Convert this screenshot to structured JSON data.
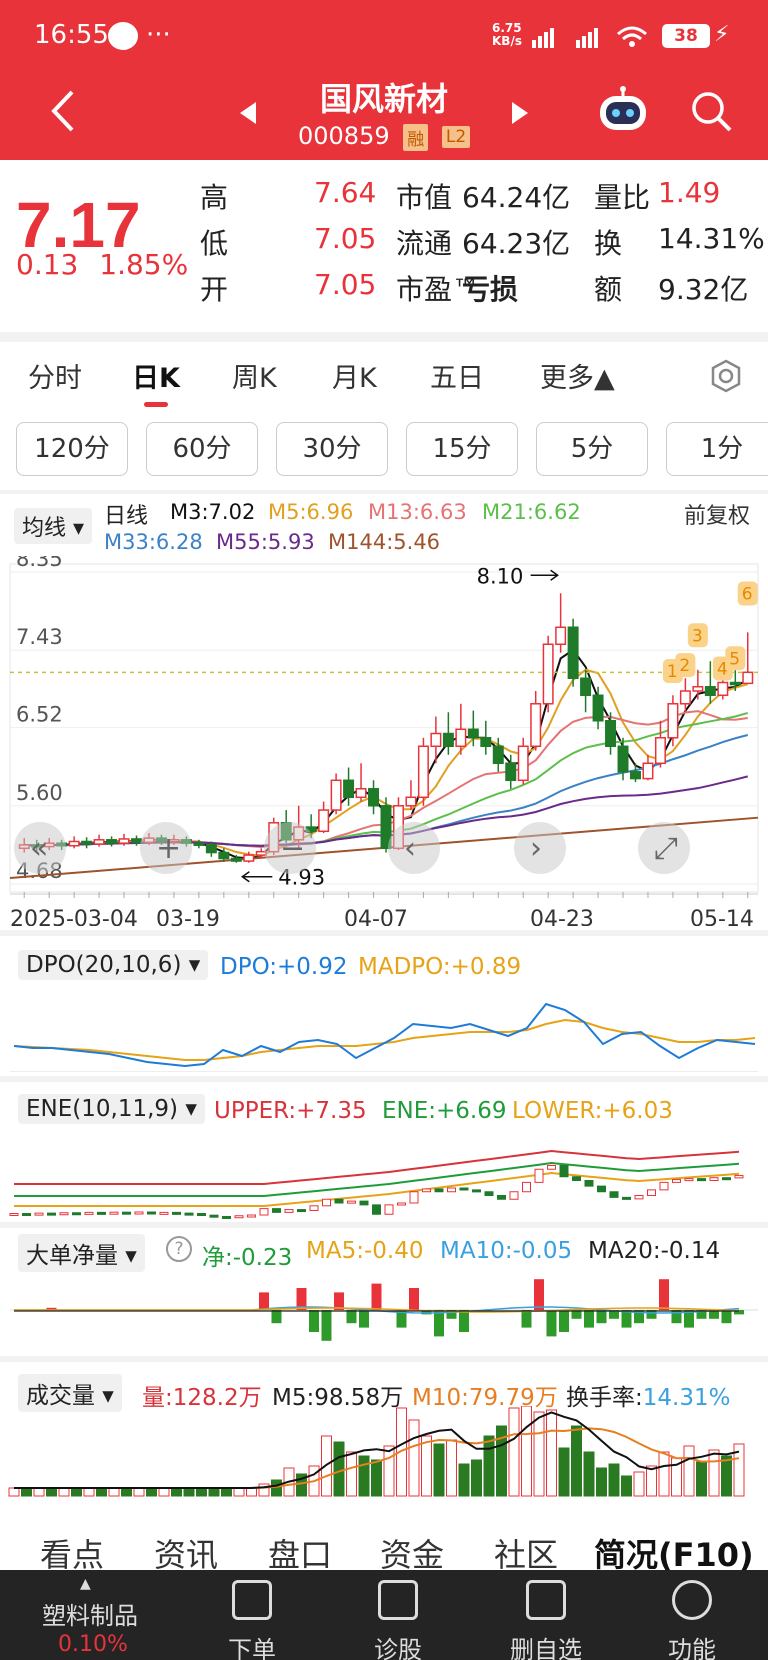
{
  "status_bar": {
    "time": "16:55",
    "dots": "···",
    "net_speed_top": "6.75",
    "net_speed_unit": "KB/s",
    "battery": "38"
  },
  "header": {
    "title": "国风新材",
    "code": "000859",
    "tag_margin": "融",
    "tag_level": "L2"
  },
  "quote": {
    "price": "7.17",
    "change": "0.13",
    "change_pct": "1.85%",
    "rows": [
      {
        "l1": "高",
        "v1": "7.64",
        "l2": "市值",
        "v2": "64.24亿",
        "l3": "量比",
        "v3": "1.49"
      },
      {
        "l1": "低",
        "v1": "7.05",
        "l2": "流通",
        "v2": "64.23亿",
        "l3": "换",
        "v3": "14.31%"
      },
      {
        "l1": "开",
        "v1": "7.05",
        "l2": "市盈™",
        "v2": "亏损",
        "l3": "额",
        "v3": "9.32亿"
      }
    ]
  },
  "period_tabs": [
    "分时",
    "日K",
    "周K",
    "月K",
    "五日",
    "更多▲"
  ],
  "minute_tabs": [
    "120分",
    "60分",
    "30分",
    "15分",
    "5分",
    "1分"
  ],
  "ma": {
    "selector": "均线",
    "label": "日线",
    "adjust": "前复权",
    "m3": "M3:7.02",
    "m5": "M5:6.96",
    "m13": "M13:6.63",
    "m21": "M21:6.62",
    "m33": "M33:6.28",
    "m55": "M55:5.93",
    "m144": "M144:5.46"
  },
  "kchart": {
    "y_ticks": [
      "8.35",
      "7.43",
      "6.52",
      "5.60",
      "4.68"
    ],
    "x_ticks": [
      "2025-03-04",
      "03-19",
      "04-07",
      "04-23",
      "05-14"
    ],
    "high_label": "8.10",
    "low_label": "4.93",
    "markers": [
      "1",
      "2",
      "3",
      "4",
      "5",
      "6"
    ]
  },
  "dpo": {
    "selector": "DPO(20,10,6)",
    "dpo": "DPO:+0.92",
    "madpo": "MADPO:+0.89"
  },
  "ene": {
    "selector": "ENE(10,11,9)",
    "upper": "UPPER:+7.35",
    "ene": "ENE:+6.69",
    "lower": "LOWER:+6.03"
  },
  "bigorder": {
    "selector": "大单净量",
    "help": "?",
    "net": "净:-0.23",
    "ma5": "MA5:-0.40",
    "ma10": "MA10:-0.05",
    "ma20": "MA20:-0.14"
  },
  "volume": {
    "selector": "成交量",
    "vol": "量:128.2万",
    "m5": "M5:98.58万",
    "m10": "M10:79.79万",
    "turnover_label": "换手率:",
    "turnover": "14.31%"
  },
  "bottom_tabs": [
    "看点",
    "资讯",
    "盘口",
    "资金",
    "社区",
    "简况(F10)"
  ],
  "footer": {
    "sector": "塑料制品",
    "sector_pct": "0.10%",
    "items": [
      "下单",
      "诊股",
      "删自选",
      "功能"
    ]
  },
  "chart_data": {
    "type": "candlestick",
    "title": "",
    "x_ticks": [
      "2025-03-04",
      "03-19",
      "04-07",
      "04-23",
      "05-14"
    ],
    "ylim": [
      4.68,
      8.35
    ],
    "y_ticks": [
      8.35,
      7.43,
      6.52,
      5.6,
      4.68
    ],
    "annotations": {
      "high": 8.1,
      "low": 4.93
    },
    "candles": [
      [
        5.1,
        5.14,
        5.22,
        5.05
      ],
      [
        5.14,
        5.12,
        5.2,
        5.06
      ],
      [
        5.12,
        5.16,
        5.22,
        5.08
      ],
      [
        5.16,
        5.13,
        5.2,
        5.08
      ],
      [
        5.13,
        5.18,
        5.24,
        5.1
      ],
      [
        5.18,
        5.15,
        5.23,
        5.1
      ],
      [
        5.15,
        5.2,
        5.26,
        5.12
      ],
      [
        5.2,
        5.16,
        5.24,
        5.12
      ],
      [
        5.16,
        5.21,
        5.27,
        5.13
      ],
      [
        5.21,
        5.17,
        5.25,
        5.13
      ],
      [
        5.17,
        5.22,
        5.28,
        5.14
      ],
      [
        5.22,
        5.18,
        5.26,
        5.14
      ],
      [
        5.18,
        5.2,
        5.26,
        5.14
      ],
      [
        5.2,
        5.16,
        5.24,
        5.12
      ],
      [
        5.16,
        5.14,
        5.2,
        5.1
      ],
      [
        5.14,
        5.05,
        5.18,
        5.0
      ],
      [
        5.05,
        4.98,
        5.1,
        4.94
      ],
      [
        4.98,
        4.95,
        5.02,
        4.93
      ],
      [
        4.95,
        5.02,
        5.06,
        4.93
      ],
      [
        5.02,
        5.06,
        5.1,
        4.98
      ],
      [
        5.06,
        5.4,
        5.46,
        5.02
      ],
      [
        5.4,
        5.2,
        5.55,
        5.16
      ],
      [
        5.2,
        5.35,
        5.6,
        5.1
      ],
      [
        5.35,
        5.3,
        5.5,
        5.22
      ],
      [
        5.3,
        5.55,
        5.65,
        5.28
      ],
      [
        5.55,
        5.9,
        5.98,
        5.5
      ],
      [
        5.9,
        5.7,
        6.05,
        5.6
      ],
      [
        5.7,
        5.8,
        6.1,
        5.65
      ],
      [
        5.8,
        5.6,
        5.9,
        5.5
      ],
      [
        5.6,
        5.1,
        5.7,
        5.05
      ],
      [
        5.1,
        5.6,
        5.7,
        5.08
      ],
      [
        5.6,
        5.7,
        5.9,
        5.55
      ],
      [
        5.7,
        6.3,
        6.4,
        5.6
      ],
      [
        6.3,
        6.45,
        6.65,
        6.1
      ],
      [
        6.45,
        6.3,
        6.7,
        6.2
      ],
      [
        6.3,
        6.5,
        6.8,
        6.2
      ],
      [
        6.5,
        6.4,
        6.72,
        6.3
      ],
      [
        6.4,
        6.3,
        6.6,
        6.2
      ],
      [
        6.3,
        6.1,
        6.4,
        6.0
      ],
      [
        6.1,
        5.9,
        6.2,
        5.8
      ],
      [
        5.9,
        6.3,
        6.4,
        5.85
      ],
      [
        6.3,
        6.8,
        6.95,
        6.25
      ],
      [
        6.8,
        7.5,
        7.6,
        6.7
      ],
      [
        7.5,
        7.7,
        8.1,
        7.4
      ],
      [
        7.7,
        7.1,
        7.8,
        7.0
      ],
      [
        7.1,
        6.9,
        7.2,
        6.7
      ],
      [
        6.9,
        6.6,
        7.0,
        6.5
      ],
      [
        6.6,
        6.3,
        6.7,
        6.2
      ],
      [
        6.3,
        6.0,
        6.4,
        5.9
      ],
      [
        6.0,
        5.92,
        6.1,
        5.88
      ],
      [
        5.92,
        6.1,
        6.2,
        5.9
      ],
      [
        6.1,
        6.4,
        6.6,
        6.05
      ],
      [
        6.4,
        6.8,
        6.9,
        6.3
      ],
      [
        6.8,
        6.95,
        7.1,
        6.7
      ],
      [
        6.95,
        7.0,
        7.2,
        6.85
      ],
      [
        7.0,
        6.9,
        7.3,
        6.8
      ],
      [
        6.9,
        7.05,
        7.2,
        6.85
      ],
      [
        7.05,
        7.04,
        7.4,
        6.95
      ],
      [
        7.04,
        7.17,
        7.64,
        7.05
      ]
    ]
  }
}
